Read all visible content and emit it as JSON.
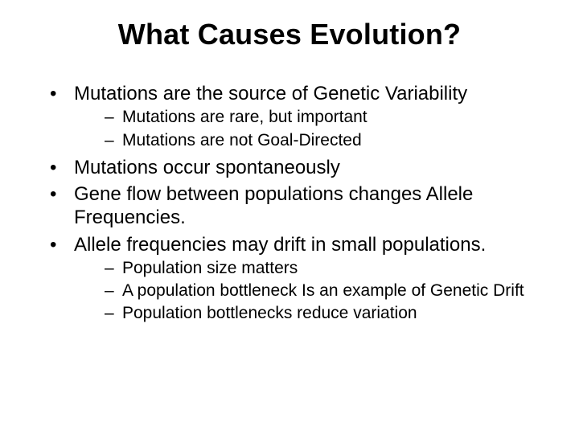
{
  "title": "What Causes Evolution?",
  "bullets": {
    "b1": "Mutations are the source of Genetic Variability",
    "b1_sub": {
      "s1": "Mutations are rare, but important",
      "s2": "Mutations are not Goal-Directed"
    },
    "b2": "Mutations occur spontaneously",
    "b3": "Gene flow between populations changes Allele Frequencies.",
    "b4": "Allele frequencies may drift in small populations.",
    "b4_sub": {
      "s1": "Population size matters",
      "s2": "A population bottleneck Is an example of Genetic Drift",
      "s3": "Population bottlenecks reduce variation"
    }
  }
}
